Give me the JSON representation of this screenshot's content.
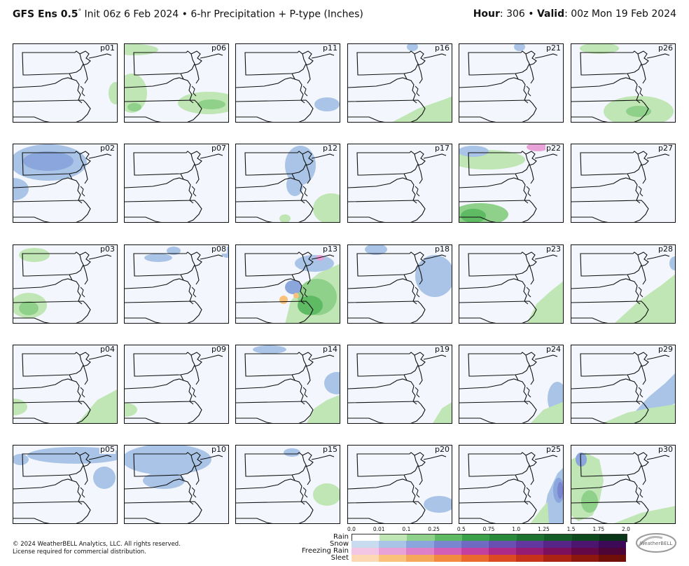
{
  "header": {
    "model": "GFS Ens 0.5",
    "degree": "°",
    "init": " Init 06z 6 Feb 2024 • 6-hr Precipitation + P-type (Inches)",
    "hour_label": "Hour",
    "hour_value": ": 306 • ",
    "valid_label": "Valid",
    "valid_value": ": 00z Mon 19 Feb 2024"
  },
  "panels": [
    "p01",
    "p06",
    "p11",
    "p16",
    "p21",
    "p26",
    "p02",
    "p07",
    "p12",
    "p17",
    "p22",
    "p27",
    "p03",
    "p08",
    "p13",
    "p18",
    "p23",
    "p28",
    "p04",
    "p09",
    "p14",
    "p19",
    "p24",
    "p29",
    "p05",
    "p10",
    "p15",
    "p20",
    "p25",
    "p30"
  ],
  "legend": {
    "ticks": [
      "0.0",
      "0.01",
      "0.1",
      "0.25",
      "0.5",
      "0.75",
      "1.0",
      "1.25",
      "1.5",
      "1.75",
      "2.0"
    ],
    "rows": [
      {
        "name": "Rain",
        "colors": [
          "#ffffff",
          "#bfe6b4",
          "#8fd18a",
          "#5fbb63",
          "#3aa04a",
          "#2a8a3b",
          "#1f7331",
          "#155d27",
          "#0e4a1e",
          "#083616"
        ]
      },
      {
        "name": "Snow",
        "colors": [
          "#c9dcef",
          "#a9c4e6",
          "#8aa6dc",
          "#7a86cf",
          "#6f6bc2",
          "#6a4fb3",
          "#62379f",
          "#572488",
          "#4b1570",
          "#3c0a57"
        ]
      },
      {
        "name": "Freezing Rain",
        "colors": [
          "#f3c6e6",
          "#e8a2d8",
          "#de7fca",
          "#d35eb8",
          "#c33fa0",
          "#ae2a88",
          "#961b72",
          "#7d105d",
          "#650848",
          "#4d0436"
        ]
      },
      {
        "name": "Sleet",
        "colors": [
          "#fdd8b5",
          "#f9c17a",
          "#f6a85a",
          "#f28a3f",
          "#ea6a2e",
          "#dc4a22",
          "#c6321a",
          "#ab2313",
          "#8e170d",
          "#700e08"
        ]
      }
    ]
  },
  "footer": {
    "line1": "© 2024 WeatherBELL Analytics, LLC. All rights reserved.",
    "line2": "License required for commercial distribution."
  },
  "logo_text": "WeatherBELL",
  "colors": {
    "map_bg": "#f3f6fc",
    "rain": "#bfe6b4",
    "snow": "#a9c4e6",
    "freezing_rain": "#e8a2d8",
    "sleet": "#f9c17a"
  }
}
